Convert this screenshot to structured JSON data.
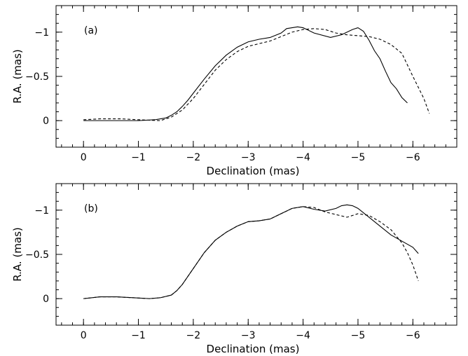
{
  "chart_data": [
    {
      "type": "line",
      "panel_label": "(a)",
      "xlabel": "Declination (mas)",
      "ylabel": "R.A. (mas)",
      "xlim": [
        0.5,
        -6.8
      ],
      "ylim": [
        0.3,
        -1.3
      ],
      "x_ticks": [
        0,
        -1,
        -2,
        -3,
        -4,
        -5,
        -6
      ],
      "x_tick_labels": [
        "0",
        "−1",
        "−2",
        "−3",
        "−4",
        "−5",
        "−6"
      ],
      "y_ticks": [
        0,
        -0.5,
        -1
      ],
      "y_tick_labels": [
        "0",
        "−0.5",
        "−1"
      ],
      "x_minor_step": 0.2,
      "y_minor_step": 0.1,
      "grid": false,
      "legend": "none",
      "series": [
        {
          "style": "solid",
          "x": [
            0,
            -0.5,
            -1.0,
            -1.3,
            -1.5,
            -1.6,
            -1.7,
            -1.8,
            -1.9,
            -2.0,
            -2.2,
            -2.4,
            -2.6,
            -2.8,
            -3.0,
            -3.2,
            -3.4,
            -3.6,
            -3.7,
            -3.9,
            -4.0,
            -4.2,
            -4.5,
            -4.7,
            -4.9,
            -5.0,
            -5.1,
            -5.2,
            -5.3,
            -5.4,
            -5.5,
            -5.6,
            -5.7,
            -5.8,
            -5.9
          ],
          "y": [
            0,
            0,
            0,
            -0.01,
            -0.03,
            -0.06,
            -0.1,
            -0.16,
            -0.23,
            -0.31,
            -0.47,
            -0.62,
            -0.74,
            -0.83,
            -0.89,
            -0.92,
            -0.94,
            -0.99,
            -1.04,
            -1.06,
            -1.05,
            -0.99,
            -0.94,
            -0.97,
            -1.03,
            -1.05,
            -1.01,
            -0.91,
            -0.79,
            -0.7,
            -0.56,
            -0.43,
            -0.36,
            -0.26,
            -0.2
          ]
        },
        {
          "style": "dashed",
          "x": [
            0,
            -0.3,
            -0.7,
            -1.0,
            -1.4,
            -1.6,
            -1.8,
            -2.0,
            -2.2,
            -2.4,
            -2.6,
            -2.8,
            -3.0,
            -3.2,
            -3.4,
            -3.6,
            -3.8,
            -4.0,
            -4.2,
            -4.4,
            -4.6,
            -4.8,
            -5.0,
            -5.2,
            -5.4,
            -5.6,
            -5.8,
            -6.0,
            -6.2,
            -6.3
          ],
          "y": [
            -0.01,
            -0.02,
            -0.02,
            -0.01,
            0,
            -0.04,
            -0.12,
            -0.25,
            -0.41,
            -0.57,
            -0.69,
            -0.78,
            -0.84,
            -0.87,
            -0.9,
            -0.95,
            -1.0,
            -1.03,
            -1.04,
            -1.03,
            -0.99,
            -0.97,
            -0.96,
            -0.95,
            -0.92,
            -0.86,
            -0.76,
            -0.5,
            -0.25,
            -0.08
          ]
        }
      ]
    },
    {
      "type": "line",
      "panel_label": "(b)",
      "xlabel": "Declination (mas)",
      "ylabel": "R.A. (mas)",
      "xlim": [
        0.5,
        -6.8
      ],
      "ylim": [
        0.3,
        -1.3
      ],
      "x_ticks": [
        0,
        -1,
        -2,
        -3,
        -4,
        -5,
        -6
      ],
      "x_tick_labels": [
        "0",
        "−1",
        "−2",
        "−3",
        "−4",
        "−5",
        "−6"
      ],
      "y_ticks": [
        0,
        -0.5,
        -1
      ],
      "y_tick_labels": [
        "0",
        "−0.5",
        "−1"
      ],
      "x_minor_step": 0.2,
      "y_minor_step": 0.1,
      "grid": false,
      "legend": "none",
      "series": [
        {
          "style": "solid",
          "x": [
            0,
            -0.3,
            -0.6,
            -0.9,
            -1.2,
            -1.4,
            -1.6,
            -1.7,
            -1.8,
            -1.9,
            -2.0,
            -2.2,
            -2.4,
            -2.6,
            -2.8,
            -3.0,
            -3.2,
            -3.4,
            -3.6,
            -3.8,
            -4.0,
            -4.2,
            -4.4,
            -4.6,
            -4.7,
            -4.8,
            -4.9,
            -5.0,
            -5.2,
            -5.4,
            -5.6,
            -5.8,
            -6.0,
            -6.1
          ],
          "y": [
            0,
            -0.02,
            -0.02,
            -0.01,
            0,
            -0.01,
            -0.04,
            -0.09,
            -0.16,
            -0.25,
            -0.34,
            -0.52,
            -0.66,
            -0.75,
            -0.82,
            -0.87,
            -0.88,
            -0.9,
            -0.96,
            -1.02,
            -1.04,
            -1.01,
            -0.99,
            -1.02,
            -1.05,
            -1.06,
            -1.05,
            -1.02,
            -0.92,
            -0.82,
            -0.72,
            -0.65,
            -0.58,
            -0.51
          ]
        },
        {
          "style": "dashed",
          "x": [
            0,
            -0.3,
            -0.6,
            -0.9,
            -1.2,
            -1.4,
            -1.6,
            -1.7,
            -1.8,
            -1.9,
            -2.0,
            -2.2,
            -2.4,
            -2.6,
            -2.8,
            -3.0,
            -3.2,
            -3.4,
            -3.6,
            -3.8,
            -4.0,
            -4.2,
            -4.4,
            -4.6,
            -4.8,
            -5.0,
            -5.2,
            -5.4,
            -5.6,
            -5.8,
            -5.9,
            -6.0,
            -6.1
          ],
          "y": [
            0,
            -0.02,
            -0.02,
            -0.01,
            0,
            -0.01,
            -0.04,
            -0.09,
            -0.16,
            -0.25,
            -0.34,
            -0.52,
            -0.66,
            -0.75,
            -0.82,
            -0.87,
            -0.88,
            -0.9,
            -0.96,
            -1.02,
            -1.04,
            -1.03,
            -0.98,
            -0.95,
            -0.92,
            -0.96,
            -0.94,
            -0.87,
            -0.78,
            -0.63,
            -0.52,
            -0.38,
            -0.2
          ]
        }
      ]
    }
  ]
}
